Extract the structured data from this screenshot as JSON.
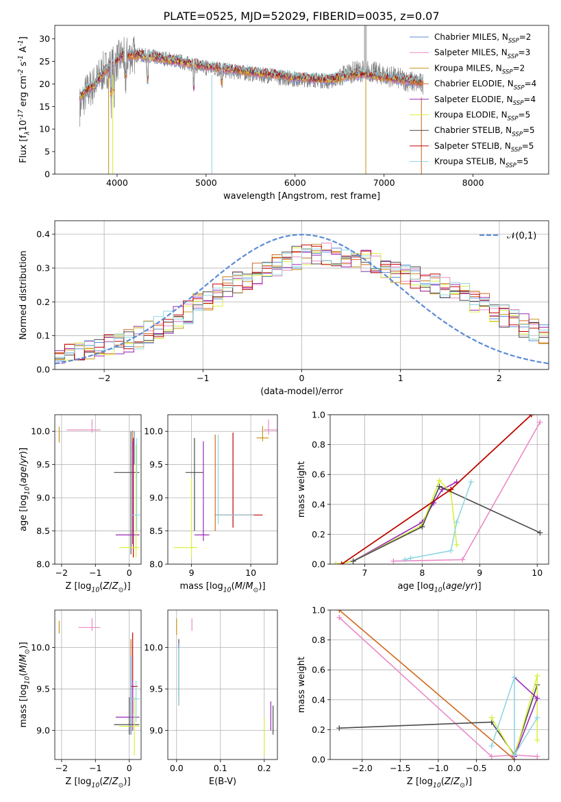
{
  "figure": {
    "title": "PLATE=0525, MJD=52029, FIBERID=0035, z=0.07"
  },
  "colors": {
    "Chabrier MILES": "#5b8bd5",
    "Salpeter MILES": "#e98ac5",
    "Kroupa MILES": "#c8951d",
    "Chabrier ELODIE": "#d2691e",
    "Salpeter ELODIE": "#9a27b8",
    "Kroupa ELODIE": "#d9f03a",
    "Chabrier STELIB": "#4a4a4a",
    "Salpeter STELIB": "#c00000",
    "Kroupa STELIB": "#8fd6e0",
    "normal": "#5b8bd5"
  },
  "chart_data": [
    {
      "id": "spectrum",
      "type": "line",
      "title": "PLATE=0525, MJD=52029, FIBERID=0035, z=0.07",
      "xlabel": "wavelength [Angstrom, rest frame]",
      "ylabel": "Flux [f$_\\lambda$10$^{-17}$ erg cm$^{-2}$ s$^{-1}$ A$^{-1}$]",
      "xlim": [
        3300,
        8850
      ],
      "ylim": [
        0,
        33
      ],
      "xticks": [
        4000,
        5000,
        6000,
        7000,
        8000
      ],
      "yticks": [
        0,
        5,
        10,
        15,
        20,
        25,
        30
      ],
      "grid": false,
      "legend_position": "top-right",
      "data_continuum": [
        [
          3580,
          15
        ],
        [
          3650,
          18
        ],
        [
          3750,
          20
        ],
        [
          3850,
          23
        ],
        [
          3950,
          24
        ],
        [
          4050,
          26
        ],
        [
          4200,
          26.5
        ],
        [
          4400,
          26
        ],
        [
          4600,
          25.5
        ],
        [
          4800,
          24.5
        ],
        [
          5000,
          23.5
        ],
        [
          5200,
          23
        ],
        [
          5400,
          22.5
        ],
        [
          5600,
          22
        ],
        [
          5800,
          21.5
        ],
        [
          6000,
          21
        ],
        [
          6200,
          21
        ],
        [
          6400,
          20.5
        ],
        [
          6600,
          22.5
        ],
        [
          6800,
          23
        ],
        [
          7000,
          22
        ],
        [
          7200,
          21
        ],
        [
          7420,
          20
        ]
      ],
      "model_continuum": [
        [
          3580,
          17
        ],
        [
          3650,
          18.5
        ],
        [
          3750,
          20
        ],
        [
          3850,
          22.5
        ],
        [
          3950,
          24.5
        ],
        [
          4050,
          26
        ],
        [
          4200,
          26.5
        ],
        [
          4400,
          26
        ],
        [
          4600,
          25.3
        ],
        [
          4800,
          24.7
        ],
        [
          5000,
          24
        ],
        [
          5200,
          23.5
        ],
        [
          5400,
          23
        ],
        [
          5600,
          22.5
        ],
        [
          5800,
          22
        ],
        [
          6000,
          21.5
        ],
        [
          6200,
          21.2
        ],
        [
          6400,
          21
        ],
        [
          6600,
          22
        ],
        [
          6800,
          22.3
        ],
        [
          7000,
          21.5
        ],
        [
          7200,
          21
        ],
        [
          7420,
          20.5
        ]
      ],
      "legend": [
        {
          "label": "Chabrier MILES, N$_{SSP}$=2"
        },
        {
          "label": "Salpeter MILES, N$_{SSP}$=3"
        },
        {
          "label": "Kroupa MILES, N$_{SSP}$=2"
        },
        {
          "label": "Chabrier ELODIE, N$_{SSP}$=4"
        },
        {
          "label": "Salpeter ELODIE, N$_{SSP}$=4"
        },
        {
          "label": "Kroupa ELODIE, N$_{SSP}$=5"
        },
        {
          "label": "Chabrier STELIB, N$_{SSP}$=5"
        },
        {
          "label": "Salpeter STELIB, N$_{SSP}$=5"
        },
        {
          "label": "Kroupa STELIB, N$_{SSP}$=5"
        }
      ]
    },
    {
      "id": "residuals",
      "type": "line",
      "xlabel": "(data-model)/error",
      "ylabel": "Normed distribution",
      "xlim": [
        -2.5,
        2.5
      ],
      "ylim": [
        0,
        0.44
      ],
      "xticks": [
        -2,
        -1,
        0,
        1,
        2
      ],
      "yticks": [
        0.0,
        0.1,
        0.2,
        0.3,
        0.4
      ],
      "grid": true,
      "legend_position": "top-right",
      "legend": "$\\mathcal{N}(0,1)$",
      "bin_width": 0.1,
      "bin_start": -2.5,
      "base_curve": [
        0.04,
        0.045,
        0.05,
        0.055,
        0.06,
        0.068,
        0.075,
        0.085,
        0.095,
        0.11,
        0.125,
        0.14,
        0.155,
        0.17,
        0.19,
        0.205,
        0.22,
        0.24,
        0.255,
        0.27,
        0.285,
        0.3,
        0.31,
        0.32,
        0.33,
        0.335,
        0.34,
        0.34,
        0.335,
        0.33,
        0.325,
        0.32,
        0.31,
        0.3,
        0.29,
        0.28,
        0.27,
        0.26,
        0.25,
        0.24,
        0.23,
        0.22,
        0.205,
        0.19,
        0.175,
        0.16,
        0.145,
        0.13,
        0.115,
        0.1
      ]
    },
    {
      "id": "age-vs-Z",
      "type": "scatter",
      "xlabel": "Z [log$_{10}$($Z/Z_\\odot$)]",
      "ylabel": "age  [log$_{10}$($age/yr$)]",
      "xlim": [
        -2.2,
        0.35
      ],
      "ylim": [
        8.0,
        10.25
      ],
      "xticks": [
        -2,
        -1,
        0
      ],
      "yticks": [
        8.0,
        8.5,
        9.0,
        9.5,
        10.0
      ],
      "grid": true
    },
    {
      "id": "age-vs-mass",
      "type": "scatter",
      "xlabel": "mass [log$_{10}$($M/M_\\odot$)]",
      "xlim": [
        8.6,
        10.45
      ],
      "ylim": [
        8.0,
        10.25
      ],
      "xticks": [
        9,
        10
      ],
      "yticks": [
        8.0,
        8.5,
        9.0,
        9.5,
        10.0
      ],
      "grid": true
    },
    {
      "id": "mw-vs-age",
      "type": "line",
      "xlabel": "age  [log$_{10}$($age/yr$)]",
      "ylabel": "mass weight",
      "xlim": [
        6.4,
        10.2
      ],
      "ylim": [
        0.0,
        1.0
      ],
      "xticks": [
        7,
        8,
        9,
        10
      ],
      "yticks": [
        0.0,
        0.2,
        0.4,
        0.6,
        0.8,
        1.0
      ],
      "grid": true,
      "series": [
        {
          "color": "Chabrier MILES",
          "points": [
            [
              6.6,
              0.0
            ],
            [
              8.5,
              0.5
            ],
            [
              9.9,
              1.0
            ]
          ]
        },
        {
          "color": "Salpeter MILES",
          "points": [
            [
              7.5,
              0.02
            ],
            [
              8.7,
              0.03
            ],
            [
              10.05,
              0.95
            ]
          ]
        },
        {
          "color": "Kroupa MILES",
          "points": [
            [
              6.6,
              0.0
            ],
            [
              8.5,
              0.5
            ],
            [
              9.9,
              1.0
            ]
          ]
        },
        {
          "color": "Chabrier ELODIE",
          "points": [
            [
              6.6,
              0.0
            ],
            [
              8.5,
              0.5
            ],
            [
              9.9,
              1.0
            ]
          ]
        },
        {
          "color": "Salpeter ELODIE",
          "points": [
            [
              6.5,
              0.0
            ],
            [
              6.8,
              0.02
            ],
            [
              8.0,
              0.28
            ],
            [
              8.2,
              0.41
            ],
            [
              8.35,
              0.5
            ],
            [
              8.6,
              0.55
            ]
          ]
        },
        {
          "color": "Kroupa ELODIE",
          "points": [
            [
              6.5,
              0.0
            ],
            [
              6.8,
              0.02
            ],
            [
              8.0,
              0.26
            ],
            [
              8.3,
              0.56
            ],
            [
              8.5,
              0.48
            ],
            [
              8.6,
              0.13
            ]
          ]
        },
        {
          "color": "Chabrier STELIB",
          "points": [
            [
              6.8,
              0.02
            ],
            [
              8.0,
              0.25
            ],
            [
              8.3,
              0.52
            ],
            [
              10.05,
              0.21
            ]
          ]
        },
        {
          "color": "Salpeter STELIB",
          "points": [
            [
              6.6,
              0.0
            ],
            [
              8.5,
              0.5
            ],
            [
              9.9,
              1.0
            ]
          ]
        },
        {
          "color": "Kroupa STELIB",
          "points": [
            [
              7.7,
              0.03
            ],
            [
              7.8,
              0.04
            ],
            [
              8.5,
              0.09
            ],
            [
              8.6,
              0.28
            ],
            [
              8.85,
              0.55
            ]
          ]
        }
      ]
    },
    {
      "id": "mass-vs-Z",
      "type": "scatter",
      "xlabel": "Z [log$_{10}$($Z/Z_\\odot$)]",
      "ylabel": "mass [log$_{10}$($M/M_\\odot$)]",
      "xlim": [
        -2.2,
        0.35
      ],
      "ylim": [
        8.65,
        10.45
      ],
      "xticks": [
        -2,
        -1,
        0
      ],
      "yticks": [
        9.0,
        9.5,
        10.0
      ],
      "grid": true
    },
    {
      "id": "mass-vs-EBV",
      "type": "scatter",
      "xlabel": "E(B-V)",
      "xlim": [
        -0.02,
        0.23
      ],
      "ylim": [
        8.65,
        10.45
      ],
      "xticks": [
        0.0,
        0.1,
        0.2
      ],
      "yticks": [
        9.0,
        9.5,
        10.0
      ],
      "grid": true
    },
    {
      "id": "mw-vs-Z",
      "type": "line",
      "xlabel": "Z [log$_{10}$($Z/Z_\\odot$)]",
      "ylabel": "mass weight",
      "xlim": [
        -2.42,
        0.45
      ],
      "ylim": [
        0.0,
        1.0
      ],
      "xticks": [
        -2.0,
        -1.5,
        -1.0,
        -0.5,
        0.0
      ],
      "yticks": [
        0.0,
        0.2,
        0.4,
        0.6,
        0.8,
        1.0
      ],
      "grid": true,
      "series": [
        {
          "color": "Salpeter MILES",
          "points": [
            [
              -2.3,
              0.95
            ],
            [
              -0.3,
              0.02
            ],
            [
              0.0,
              0.03
            ],
            [
              0.3,
              0.02
            ]
          ]
        },
        {
          "color": "Chabrier ELODIE",
          "points": [
            [
              -2.3,
              1.0
            ],
            [
              0.0,
              0.0
            ]
          ]
        },
        {
          "color": "Chabrier STELIB",
          "points": [
            [
              -2.3,
              0.21
            ],
            [
              -0.3,
              0.25
            ],
            [
              0.0,
              0.03
            ],
            [
              0.3,
              0.5
            ]
          ]
        },
        {
          "color": "Kroupa ELODIE",
          "points": [
            [
              -0.3,
              0.28
            ],
            [
              0.0,
              0.02
            ],
            [
              0.3,
              0.56
            ],
            [
              0.3,
              0.13
            ]
          ]
        },
        {
          "color": "Salpeter ELODIE",
          "points": [
            [
              0.0,
              0.02
            ],
            [
              0.3,
              0.41
            ],
            [
              0.0,
              0.55
            ]
          ]
        },
        {
          "color": "Kroupa STELIB",
          "points": [
            [
              -0.3,
              0.09
            ],
            [
              0.0,
              0.55
            ],
            [
              0.0,
              0.03
            ],
            [
              0.3,
              0.28
            ]
          ]
        }
      ]
    }
  ]
}
